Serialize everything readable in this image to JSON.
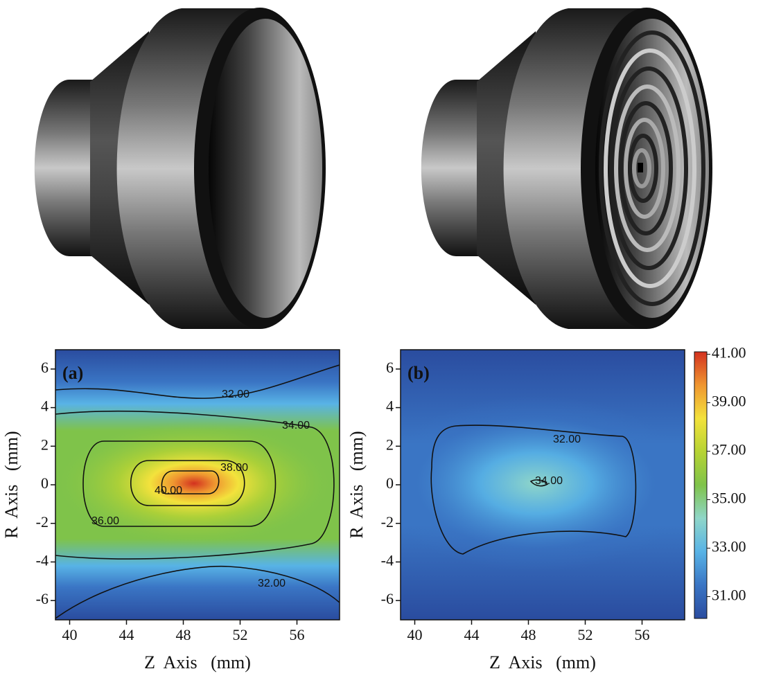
{
  "chart_data": [
    {
      "type": "contour",
      "panel_label": "(a)",
      "xlabel": "Z  Axis   (mm)",
      "ylabel": "R  Axis   (mm)",
      "xlim": [
        39,
        59
      ],
      "ylim": [
        -7,
        7
      ],
      "xticks": [
        40,
        44,
        48,
        52,
        56
      ],
      "yticks": [
        -6,
        -4,
        -2,
        0,
        2,
        4,
        6
      ],
      "contour_levels": [
        {
          "value": 32,
          "label": "32.00"
        },
        {
          "value": 34,
          "label": "34.00"
        },
        {
          "value": 36,
          "label": "36.00"
        },
        {
          "value": 38,
          "label": "38.00"
        },
        {
          "value": 40,
          "label": "40.00"
        }
      ]
    },
    {
      "type": "contour",
      "panel_label": "(b)",
      "xlabel": "Z  Axis   (mm)",
      "ylabel": "R  Axis   (mm)",
      "xlim": [
        39,
        59
      ],
      "ylim": [
        -7,
        7
      ],
      "xticks": [
        40,
        44,
        48,
        52,
        56
      ],
      "yticks": [
        -6,
        -4,
        -2,
        0,
        2,
        4,
        6
      ],
      "contour_levels": [
        {
          "value": 32,
          "label": "32.00"
        },
        {
          "value": 34,
          "label": "34.00"
        }
      ],
      "colorbar": {
        "lim": [
          30.1,
          41.1
        ],
        "ticks": [
          {
            "value": 31,
            "label": "31.00"
          },
          {
            "value": 33,
            "label": "33.00"
          },
          {
            "value": 35,
            "label": "35.00"
          },
          {
            "value": 37,
            "label": "37.00"
          },
          {
            "value": 39,
            "label": "39.00"
          },
          {
            "value": 41,
            "label": "41.00"
          }
        ],
        "colors": [
          "#2a4c9f",
          "#3a75c4",
          "#58b3e6",
          "#8fd6c9",
          "#7fc34a",
          "#b6d334",
          "#f3e23c",
          "#ef9630",
          "#d3311f"
        ]
      }
    }
  ]
}
